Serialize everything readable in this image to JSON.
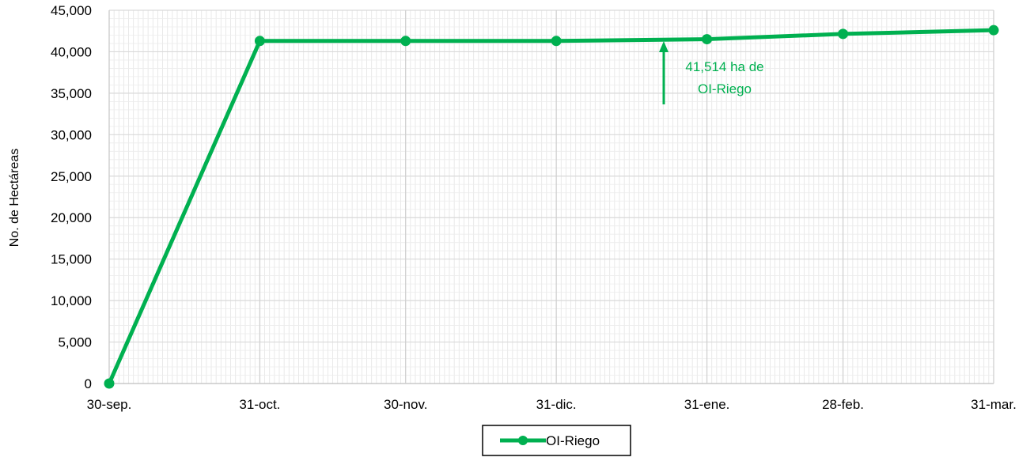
{
  "chart_data": {
    "type": "line",
    "title": "",
    "xlabel": "",
    "ylabel": "No. de Hectáreas",
    "ylim": [
      0,
      45000
    ],
    "yticks": [
      "0",
      "5,000",
      "10,000",
      "15,000",
      "20,000",
      "25,000",
      "30,000",
      "35,000",
      "40,000",
      "45,000"
    ],
    "xlim": [
      "30-sep.",
      "31-mar."
    ],
    "x_tick_labels": [
      "30-sep.",
      "31-oct.",
      "30-nov.",
      "31-dic.",
      "31-ene.",
      "28-feb.",
      "31-mar."
    ],
    "x_tick_days": [
      0,
      31,
      61,
      92,
      123,
      151,
      182
    ],
    "grid": true,
    "legend_position": "bottom",
    "series": [
      {
        "name": "OI-Riego",
        "color": "#00B050",
        "x": [
          "30-sep.",
          "31-oct.",
          "30-nov.",
          "31-dic.",
          "31-ene.",
          "28-feb.",
          "31-mar."
        ],
        "values": [
          0,
          41300,
          41300,
          41300,
          41514,
          42150,
          42600
        ]
      }
    ],
    "annotation": {
      "line1": "41,514 ha de",
      "line2": "OI-Riego",
      "at_x": "~24-ene.",
      "color": "#00B050"
    }
  }
}
